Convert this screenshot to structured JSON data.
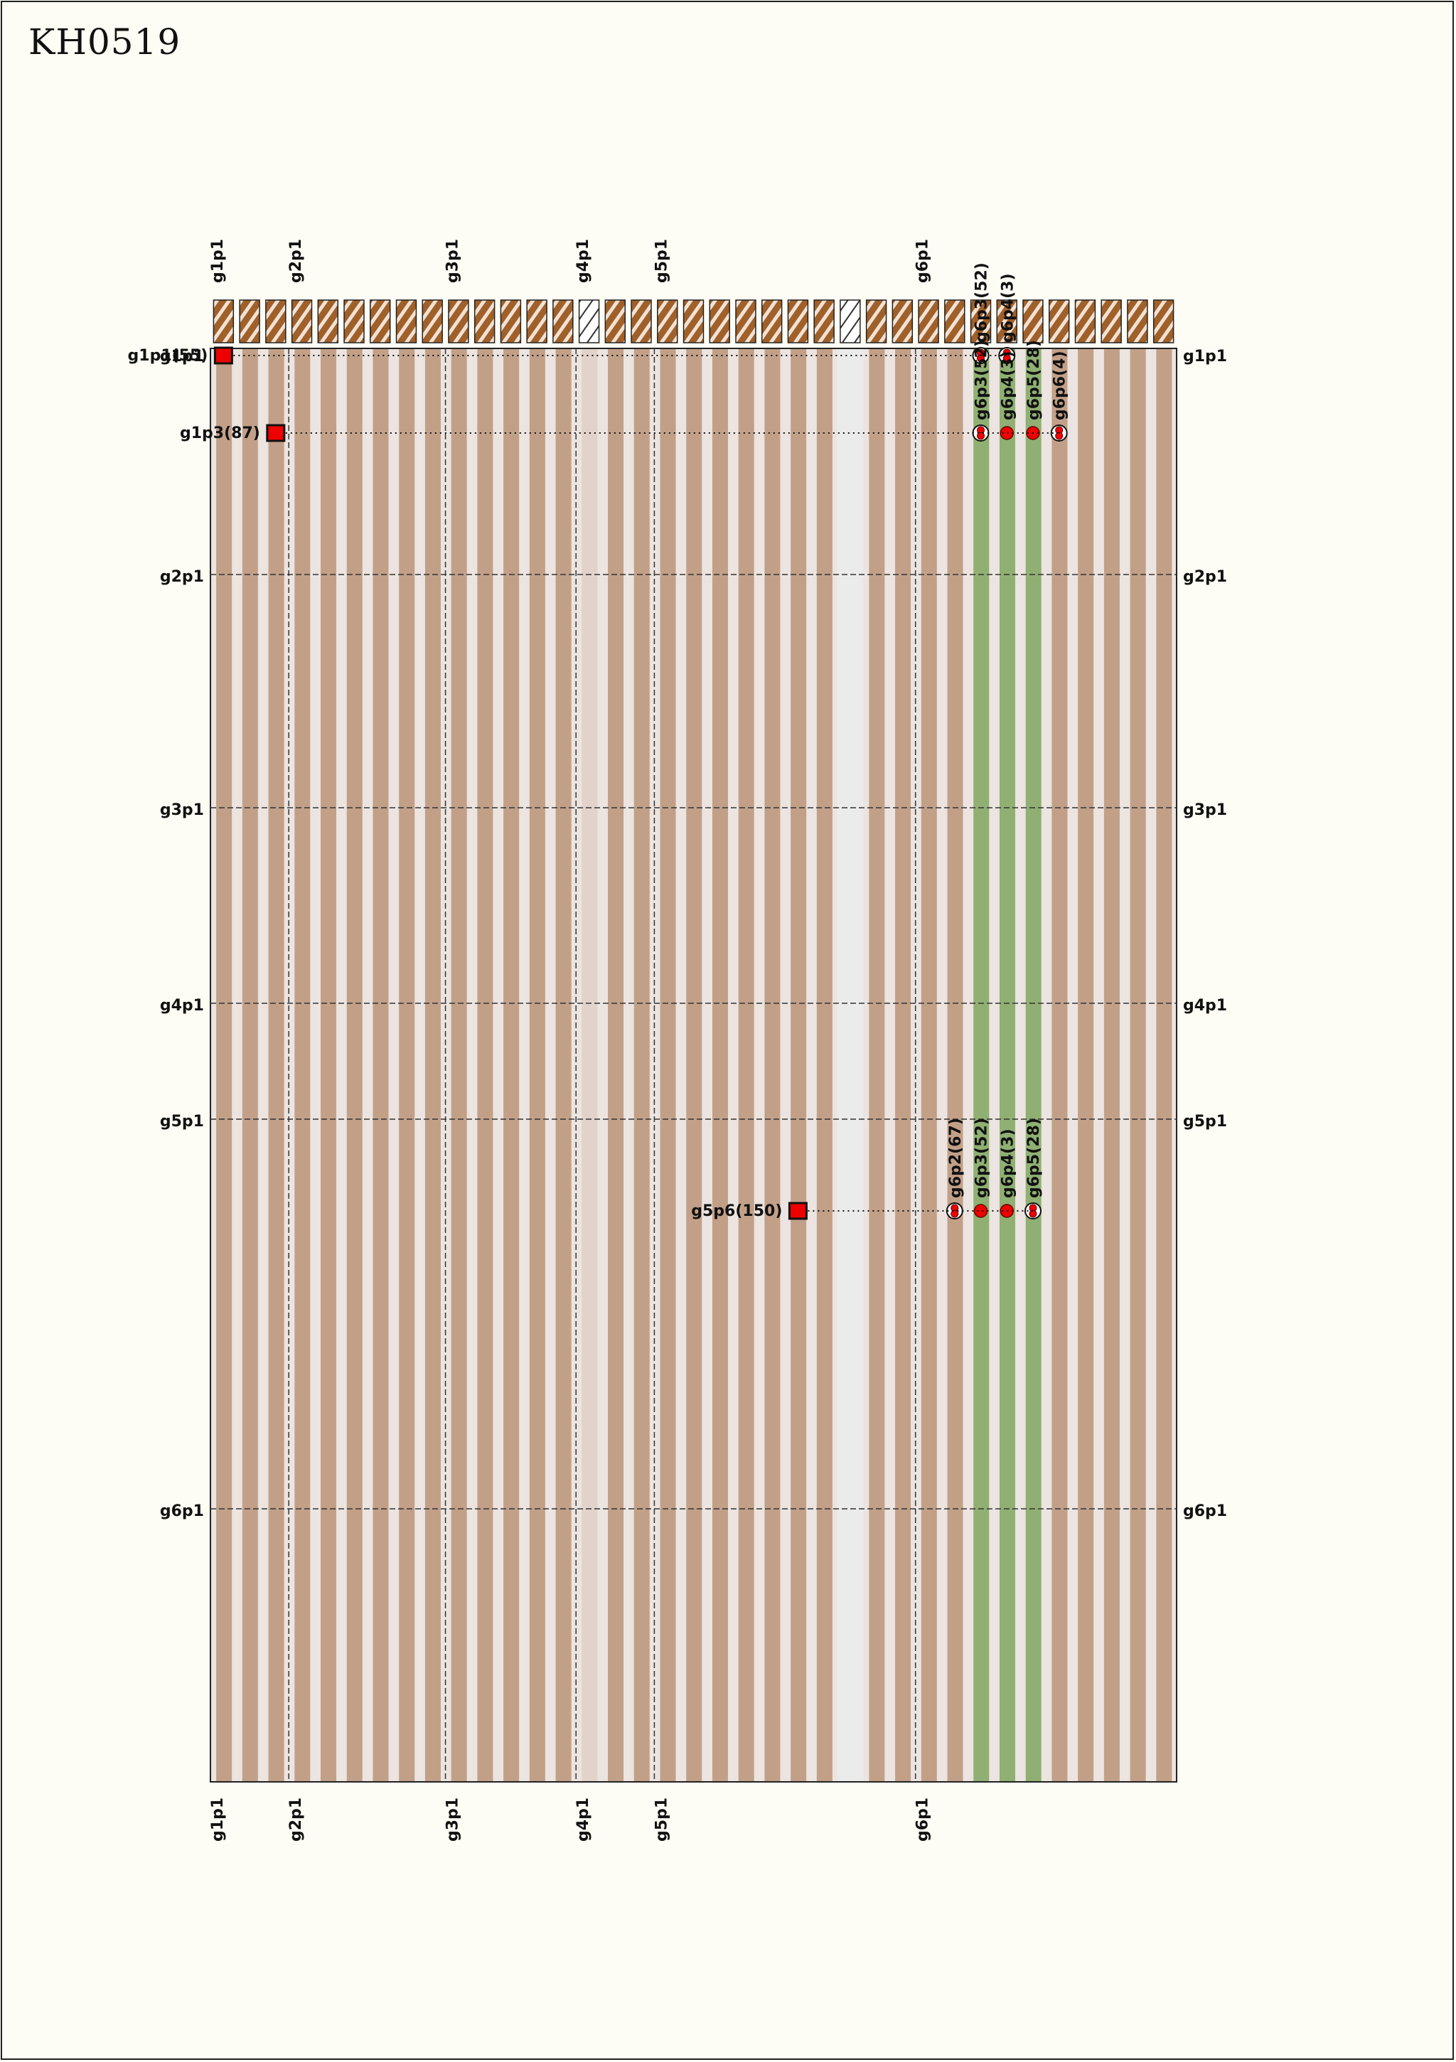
{
  "title": "KH0519",
  "genomes": [
    "g1p1",
    "g2p1",
    "g3p1",
    "g4p1",
    "g5p1",
    "g6p1"
  ],
  "genome_start_columns": [
    0,
    3,
    9,
    14,
    17,
    27
  ],
  "genome_start_rows": [
    0,
    0,
    0,
    0,
    0,
    0
  ],
  "column_count": 37,
  "pale_columns": [
    24
  ],
  "partial_columns": [
    14
  ],
  "highlight_columns": [
    29,
    30,
    31
  ],
  "highlight_color": "#8fb072",
  "column_colors": {
    "dark": "#a0602a",
    "tan": "#c2a088",
    "pale_stripe": "#ece4e0",
    "empty": "#ebebeb"
  },
  "features": [
    {
      "label": "g1p1(55)",
      "shape": "square",
      "column": 0,
      "row": 55,
      "connections": [
        "g6p3(52)",
        "g6p4(3)"
      ]
    },
    {
      "label": "g1p3(87)",
      "shape": "square",
      "column": 2,
      "row": 87,
      "connections": [
        "g6p3(52)",
        "g6p4(3)",
        "g6p5(28)",
        "g6p6(4)"
      ]
    },
    {
      "label": "g5p6(150)",
      "shape": "square",
      "column": 22,
      "row": 150,
      "connections": [
        "g6p2(67)",
        "g6p3(52)",
        "g6p4(3)",
        "g6p5(28)"
      ]
    }
  ],
  "markers": [
    {
      "label": "g6p3(52)",
      "column": 29,
      "row": 55,
      "style": "double",
      "label_pos": "top"
    },
    {
      "label": "g6p4(3)",
      "column": 30,
      "row": 55,
      "style": "double",
      "label_pos": "top"
    },
    {
      "label": "g6p3(52)",
      "column": 29,
      "row": 87,
      "style": "double",
      "label_pos": "inside"
    },
    {
      "label": "g6p4(3)",
      "column": 30,
      "row": 87,
      "style": "single",
      "label_pos": "inside"
    },
    {
      "label": "g6p5(28)",
      "column": 31,
      "row": 87,
      "style": "single",
      "label_pos": "inside"
    },
    {
      "label": "g6p6(4)",
      "column": 32,
      "row": 87,
      "style": "double",
      "label_pos": "inside"
    },
    {
      "label": "g6p2(67)",
      "column": 28,
      "row": 150,
      "style": "double",
      "label_pos": "inside"
    },
    {
      "label": "g6p3(52)",
      "column": 29,
      "row": 150,
      "style": "single",
      "label_pos": "inside"
    },
    {
      "label": "g6p4(3)",
      "column": 30,
      "row": 150,
      "style": "single",
      "label_pos": "inside"
    },
    {
      "label": "g6p5(28)",
      "column": 31,
      "row": 150,
      "style": "double",
      "label_pos": "inside"
    }
  ]
}
